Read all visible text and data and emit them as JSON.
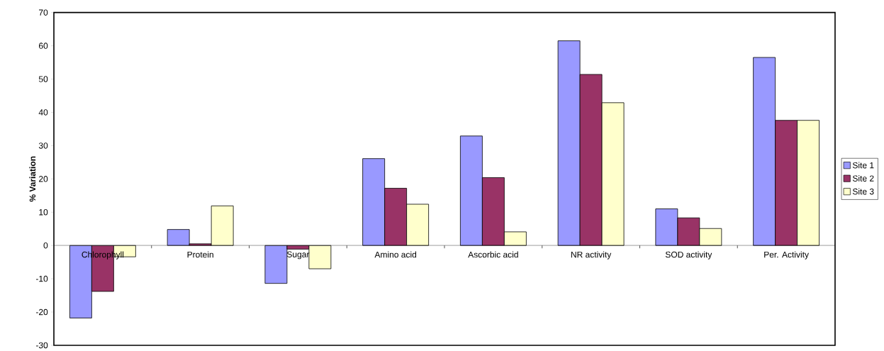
{
  "chart_data": {
    "type": "bar",
    "ylabel": "% Variation",
    "categories": [
      "Chlorophyll",
      "Protein",
      "Sugar",
      "Amino acid",
      "Ascorbic acid",
      "NR activity",
      "SOD activity",
      "Per. Activity"
    ],
    "series": [
      {
        "name": "Site 1",
        "color": "#9999ff",
        "values": [
          -21.8,
          4.8,
          -11.4,
          26.1,
          32.9,
          61.5,
          11.0,
          56.5
        ]
      },
      {
        "name": "Site 2",
        "color": "#993366",
        "values": [
          -13.8,
          0.5,
          -1.1,
          17.2,
          20.4,
          51.4,
          8.3,
          37.6
        ]
      },
      {
        "name": "Site 3",
        "color": "#ffffcc",
        "values": [
          -3.4,
          11.9,
          -7.0,
          12.4,
          4.1,
          42.9,
          5.1,
          37.6
        ]
      }
    ],
    "ylim": [
      -30,
      70
    ],
    "yticks": [
      -30,
      -20,
      -10,
      0,
      10,
      20,
      30,
      40,
      50,
      60,
      70
    ],
    "grid": false,
    "legend": "right"
  }
}
